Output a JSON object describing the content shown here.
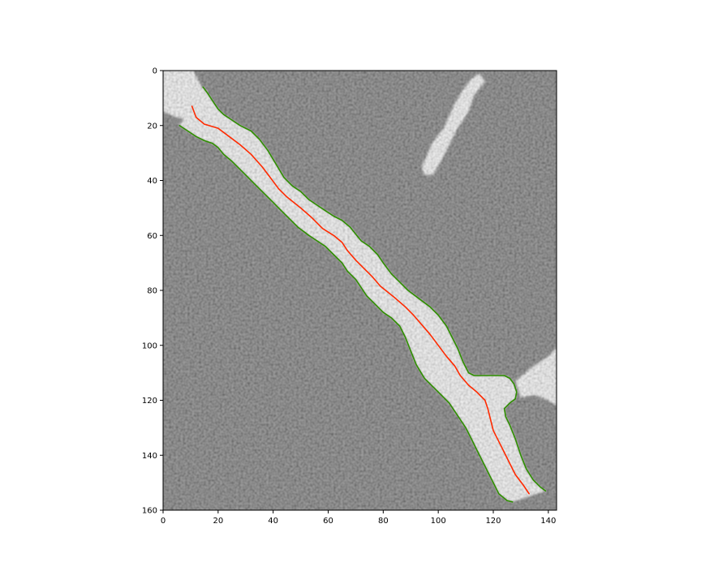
{
  "figure": {
    "background_color": "#ffffff",
    "image_background_color": "#5f5f5f",
    "bright_structure_color": "#f6f6f6"
  },
  "chart_data": {
    "type": "image-with-line-overlay",
    "title": "",
    "xlabel": "",
    "ylabel": "",
    "xlim": [
      0,
      143
    ],
    "ylim": [
      160,
      0
    ],
    "y_axis_inverted": true,
    "grid": false,
    "legend": "none",
    "x_ticks": [
      0,
      20,
      40,
      60,
      80,
      100,
      120,
      140
    ],
    "y_ticks": [
      0,
      20,
      40,
      60,
      80,
      100,
      120,
      140,
      160
    ],
    "overlay_series": [
      {
        "role": "centerline",
        "color": "#ff2a00",
        "points": [
          [
            10.5,
            13
          ],
          [
            12,
            17
          ],
          [
            15,
            19.5
          ],
          [
            20,
            21
          ],
          [
            24,
            24
          ],
          [
            28,
            27
          ],
          [
            32,
            30.5
          ],
          [
            36,
            35
          ],
          [
            39,
            39
          ],
          [
            42,
            43
          ],
          [
            45,
            46
          ],
          [
            50,
            50
          ],
          [
            54,
            53.5
          ],
          [
            58,
            57.5
          ],
          [
            62,
            60
          ],
          [
            65,
            62.5
          ],
          [
            67,
            65.5
          ],
          [
            70,
            69
          ],
          [
            73,
            72
          ],
          [
            76,
            75
          ],
          [
            79,
            78.5
          ],
          [
            84,
            82.5
          ],
          [
            88,
            86
          ],
          [
            91,
            89
          ],
          [
            94,
            92.5
          ],
          [
            97,
            96
          ],
          [
            100,
            100
          ],
          [
            103,
            104
          ],
          [
            106,
            107.5
          ],
          [
            108,
            111
          ],
          [
            111,
            114.5
          ],
          [
            114,
            117
          ],
          [
            117,
            120
          ],
          [
            118,
            123
          ],
          [
            119,
            127
          ],
          [
            120,
            131
          ],
          [
            122,
            135
          ],
          [
            124,
            139
          ],
          [
            126,
            143
          ],
          [
            128,
            147
          ],
          [
            131,
            151
          ],
          [
            133,
            154
          ]
        ]
      },
      {
        "role": "boundary-upper",
        "color": "#2f8f00",
        "points": [
          [
            14.5,
            6
          ],
          [
            16,
            8
          ],
          [
            18,
            11
          ],
          [
            20,
            14
          ],
          [
            22,
            16
          ],
          [
            25,
            18
          ],
          [
            28,
            20
          ],
          [
            32,
            22
          ],
          [
            35,
            25
          ],
          [
            38,
            29
          ],
          [
            41,
            34
          ],
          [
            44,
            39
          ],
          [
            47,
            42
          ],
          [
            50,
            44
          ],
          [
            53,
            47
          ],
          [
            56,
            49
          ],
          [
            59,
            51
          ],
          [
            62,
            53
          ],
          [
            65,
            54.5
          ],
          [
            68,
            57
          ],
          [
            70,
            59.5
          ],
          [
            72,
            62
          ],
          [
            75,
            64
          ],
          [
            78,
            67
          ],
          [
            80,
            70
          ],
          [
            83,
            74
          ],
          [
            86,
            77
          ],
          [
            89,
            80
          ],
          [
            93,
            83
          ],
          [
            97,
            86
          ],
          [
            100,
            89
          ],
          [
            103,
            93
          ],
          [
            105,
            97
          ],
          [
            107,
            101
          ],
          [
            109,
            106
          ],
          [
            111,
            110
          ],
          [
            113,
            111
          ],
          [
            116,
            111
          ],
          [
            119,
            111
          ],
          [
            122,
            111
          ],
          [
            124,
            111
          ],
          [
            126,
            112
          ],
          [
            127.5,
            114
          ],
          [
            128.5,
            117
          ],
          [
            128,
            119.5
          ],
          [
            126,
            121
          ],
          [
            124,
            123
          ],
          [
            124.5,
            126
          ],
          [
            126,
            129
          ],
          [
            128,
            134
          ],
          [
            130,
            140
          ],
          [
            132,
            145
          ],
          [
            134.5,
            149
          ],
          [
            137,
            151.5
          ],
          [
            139,
            153
          ]
        ]
      },
      {
        "role": "boundary-lower",
        "color": "#2f8f00",
        "points": [
          [
            6,
            20
          ],
          [
            9,
            22
          ],
          [
            12,
            24
          ],
          [
            15,
            25.5
          ],
          [
            18,
            26.5
          ],
          [
            20,
            28
          ],
          [
            22,
            30.5
          ],
          [
            25,
            33
          ],
          [
            28,
            36
          ],
          [
            31,
            39
          ],
          [
            34,
            42
          ],
          [
            37,
            45
          ],
          [
            40,
            48
          ],
          [
            43,
            51
          ],
          [
            46,
            54
          ],
          [
            49,
            57
          ],
          [
            53,
            60
          ],
          [
            56,
            62
          ],
          [
            59,
            64
          ],
          [
            62,
            67
          ],
          [
            65,
            70
          ],
          [
            67,
            73
          ],
          [
            70,
            76
          ],
          [
            72,
            79
          ],
          [
            74,
            82
          ],
          [
            77,
            85
          ],
          [
            80,
            88
          ],
          [
            83,
            90
          ],
          [
            86,
            93
          ],
          [
            88,
            97
          ],
          [
            90,
            102
          ],
          [
            92,
            107
          ],
          [
            95,
            112
          ],
          [
            98,
            115
          ],
          [
            101,
            118
          ],
          [
            104,
            121
          ],
          [
            106,
            124
          ],
          [
            108,
            127
          ],
          [
            110,
            130
          ],
          [
            112,
            134
          ],
          [
            114,
            138
          ],
          [
            116,
            142
          ],
          [
            118,
            146
          ],
          [
            120,
            150
          ],
          [
            122,
            154
          ],
          [
            125,
            156.5
          ],
          [
            127,
            157
          ]
        ]
      }
    ],
    "bright_regions": [
      {
        "kind": "top-left-blob",
        "points": [
          [
            0,
            0
          ],
          [
            11,
            0
          ],
          [
            15,
            8
          ],
          [
            14,
            14
          ],
          [
            10,
            18
          ],
          [
            5,
            17
          ],
          [
            0,
            15
          ]
        ]
      },
      {
        "kind": "upper-right-streak",
        "points": [
          [
            94,
            35
          ],
          [
            98,
            26
          ],
          [
            102,
            21
          ],
          [
            106,
            12
          ],
          [
            109,
            7
          ],
          [
            112,
            3
          ],
          [
            115,
            1
          ],
          [
            117,
            4
          ],
          [
            113,
            9
          ],
          [
            111,
            15
          ],
          [
            107,
            21
          ],
          [
            104,
            27
          ],
          [
            101,
            33
          ],
          [
            98,
            38
          ],
          [
            95,
            38
          ]
        ]
      },
      {
        "kind": "right-branch",
        "points": [
          [
            128,
            113
          ],
          [
            134,
            108
          ],
          [
            140,
            104
          ],
          [
            143,
            101
          ],
          [
            143,
            122
          ],
          [
            140,
            120
          ],
          [
            135,
            118
          ],
          [
            130,
            119
          ]
        ]
      }
    ]
  }
}
